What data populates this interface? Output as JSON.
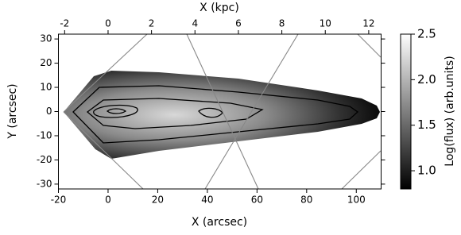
{
  "chart_data": {
    "type": "image",
    "colormap": "gray",
    "x_label": "X (arcsec)",
    "y_label": "Y (arcsec)",
    "x2_label": "X (kpc)",
    "xlim": [
      -20,
      110
    ],
    "xticks": [
      -20,
      0,
      20,
      40,
      60,
      80,
      100
    ],
    "x2lim": [
      -2.286,
      12.571
    ],
    "x2ticks": [
      -2,
      0,
      2,
      4,
      6,
      8,
      10,
      12
    ],
    "ylim": [
      -32,
      32
    ],
    "yticks": [
      -30,
      -20,
      -10,
      0,
      10,
      20,
      30
    ],
    "colorbar": {
      "label": "Log(flux) (arb.units)",
      "lim": [
        0.8,
        2.5
      ],
      "ticks": [
        {
          "value": 1,
          "label": "1.0"
        },
        1.5,
        {
          "value": 2,
          "label": "2.0"
        },
        2.5
      ]
    }
  }
}
